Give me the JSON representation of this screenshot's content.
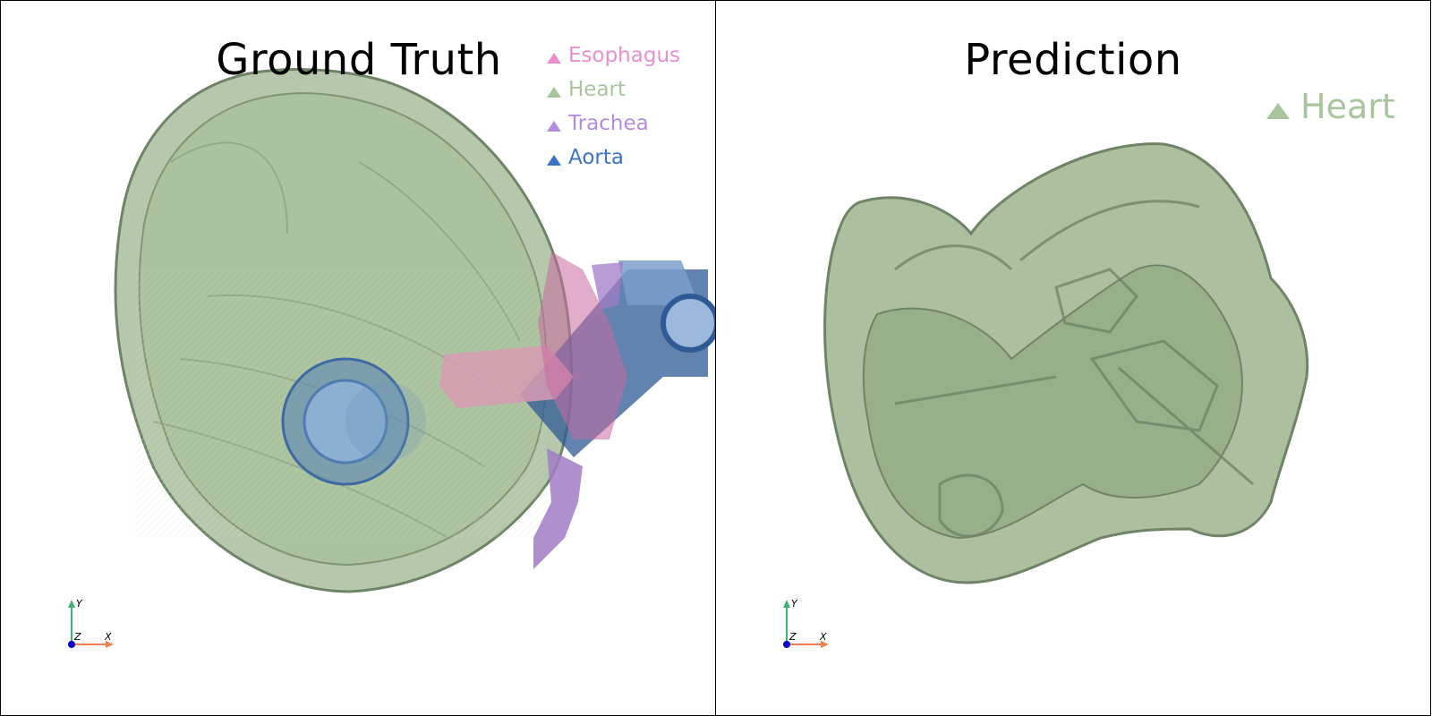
{
  "panels": {
    "left": {
      "title": "Ground Truth",
      "legend": [
        {
          "label": "Esophagus",
          "color": "#e98fd0"
        },
        {
          "label": "Heart",
          "color": "#a8c59e"
        },
        {
          "label": "Trachea",
          "color": "#b58be0"
        },
        {
          "label": "Aorta",
          "color": "#3b73c7"
        }
      ]
    },
    "right": {
      "title": "Prediction",
      "legend": [
        {
          "label": "Heart",
          "color": "#a8c59e"
        }
      ]
    }
  },
  "axes": {
    "x": "X",
    "y": "Y",
    "z": "Z"
  },
  "colors": {
    "heart_fill": "#9db58f",
    "heart_edge": "#6f8466",
    "aorta_fill": "#5b86b8",
    "aorta_dark": "#2e5a96",
    "esophagus_fill": "#d89bb3",
    "trachea_fill": "#a27bc7",
    "axis_x": "#f08050",
    "axis_y": "#3cb371",
    "axis_z": "#0000cc"
  }
}
